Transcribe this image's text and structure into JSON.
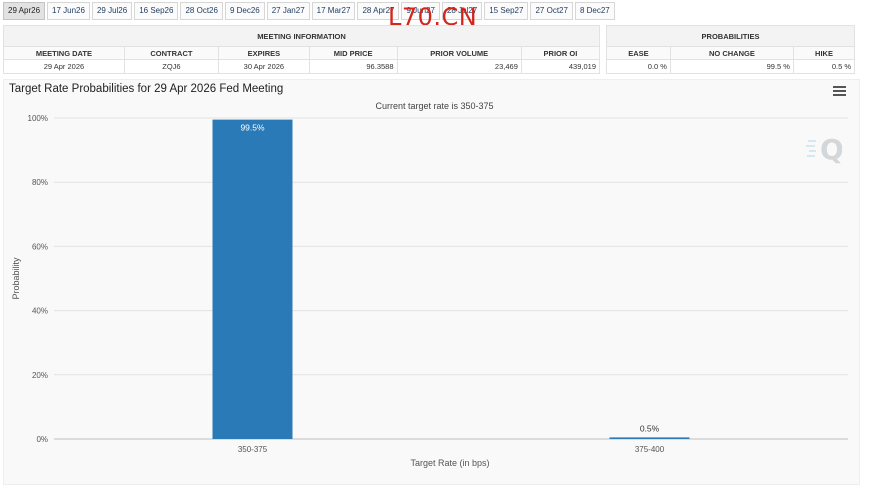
{
  "tabs": [
    {
      "label": "29 Apr26",
      "active": true
    },
    {
      "label": "17 Jun26"
    },
    {
      "label": "29 Jul26"
    },
    {
      "label": "16 Sep26"
    },
    {
      "label": "28 Oct26"
    },
    {
      "label": "9 Dec26"
    },
    {
      "label": "27 Jan27"
    },
    {
      "label": "17 Mar27"
    },
    {
      "label": "28 Apr27"
    },
    {
      "label": "9 Jun27"
    },
    {
      "label": "28 Jul27"
    },
    {
      "label": "15 Sep27"
    },
    {
      "label": "27 Oct27"
    },
    {
      "label": "8 Dec27"
    }
  ],
  "watermark": "L70.CN",
  "meeting_info": {
    "title": "MEETING INFORMATION",
    "headers": [
      "MEETING DATE",
      "CONTRACT",
      "EXPIRES",
      "MID PRICE",
      "PRIOR VOLUME",
      "PRIOR OI"
    ],
    "values": [
      "29 Apr 2026",
      "ZQJ6",
      "30 Apr 2026",
      "96.3588",
      "23,469",
      "439,019"
    ]
  },
  "probabilities": {
    "title": "PROBABILITIES",
    "headers": [
      "EASE",
      "NO CHANGE",
      "HIKE"
    ],
    "values": [
      "0.0 %",
      "99.5 %",
      "0.5 %"
    ]
  },
  "chart_data": {
    "type": "bar",
    "title": "Target Rate Probabilities for 29 Apr 2026 Fed Meeting",
    "subtitle": "Current target rate is 350-375",
    "categories": [
      "350-375",
      "375-400"
    ],
    "values": [
      99.5,
      0.5
    ],
    "data_labels": [
      "99.5%",
      "0.5%"
    ],
    "xlabel": "Target Rate (in bps)",
    "ylabel": "Probability",
    "ylim": [
      0,
      100
    ],
    "yticks": [
      0,
      20,
      40,
      60,
      80,
      100
    ],
    "ytick_labels": [
      "0%",
      "20%",
      "40%",
      "60%",
      "80%",
      "100%"
    ],
    "grid": true,
    "bar_color": "#2a7ab8",
    "legend": "none"
  }
}
